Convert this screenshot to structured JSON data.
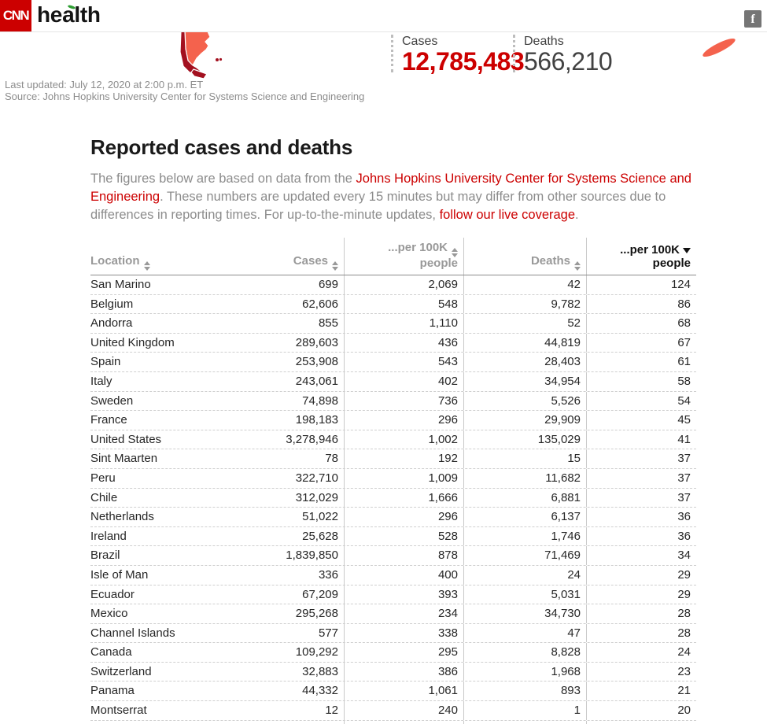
{
  "brand": {
    "logo_text": "CNN",
    "wordmark": "health"
  },
  "topbar": {
    "facebook_label": "f"
  },
  "summary": {
    "cases_label": "Cases",
    "cases_value": "12,785,483",
    "deaths_label": "Deaths",
    "deaths_value": "566,210"
  },
  "meta": {
    "last_updated": "Last updated: July 12, 2020 at 2:00 p.m. ET",
    "source": "Source: Johns Hopkins University Center for Systems Science and Engineering"
  },
  "article": {
    "title": "Reported cases and deaths",
    "intro": {
      "part1": "The figures below are based on data from the ",
      "link1": "Johns Hopkins University Center for Systems Science and Engineering",
      "part2": ". These numbers are updated every 15 minutes but may differ from other sources due to differences in reporting times. For up-to-the-minute updates, ",
      "link2": "follow our live coverage",
      "part3": "."
    }
  },
  "colors": {
    "accent_red": "#cc0000",
    "map_coral": "#f4624d",
    "map_dark_red": "#a3101f",
    "link_red": "#cc0000"
  },
  "table": {
    "columns": [
      {
        "id": "location",
        "line1": "Location",
        "line2": "",
        "align": "left",
        "sort": "inactive"
      },
      {
        "id": "cases",
        "line1": "Cases",
        "line2": "",
        "align": "right",
        "sort": "inactive"
      },
      {
        "id": "cases_per_100k",
        "line1": "...per 100K",
        "line2": "people",
        "align": "right",
        "sort": "inactive"
      },
      {
        "id": "deaths",
        "line1": "Deaths",
        "line2": "",
        "align": "right",
        "sort": "inactive"
      },
      {
        "id": "deaths_per_100k",
        "line1": "...per 100K",
        "line2": "people",
        "align": "right",
        "sort": "desc"
      }
    ],
    "rows": [
      [
        "San Marino",
        "699",
        "2,069",
        "42",
        "124"
      ],
      [
        "Belgium",
        "62,606",
        "548",
        "9,782",
        "86"
      ],
      [
        "Andorra",
        "855",
        "1,110",
        "52",
        "68"
      ],
      [
        "United Kingdom",
        "289,603",
        "436",
        "44,819",
        "67"
      ],
      [
        "Spain",
        "253,908",
        "543",
        "28,403",
        "61"
      ],
      [
        "Italy",
        "243,061",
        "402",
        "34,954",
        "58"
      ],
      [
        "Sweden",
        "74,898",
        "736",
        "5,526",
        "54"
      ],
      [
        "France",
        "198,183",
        "296",
        "29,909",
        "45"
      ],
      [
        "United States",
        "3,278,946",
        "1,002",
        "135,029",
        "41"
      ],
      [
        "Sint Maarten",
        "78",
        "192",
        "15",
        "37"
      ],
      [
        "Peru",
        "322,710",
        "1,009",
        "11,682",
        "37"
      ],
      [
        "Chile",
        "312,029",
        "1,666",
        "6,881",
        "37"
      ],
      [
        "Netherlands",
        "51,022",
        "296",
        "6,137",
        "36"
      ],
      [
        "Ireland",
        "25,628",
        "528",
        "1,746",
        "36"
      ],
      [
        "Brazil",
        "1,839,850",
        "878",
        "71,469",
        "34"
      ],
      [
        "Isle of Man",
        "336",
        "400",
        "24",
        "29"
      ],
      [
        "Ecuador",
        "67,209",
        "393",
        "5,031",
        "29"
      ],
      [
        "Mexico",
        "295,268",
        "234",
        "34,730",
        "28"
      ],
      [
        "Channel Islands",
        "577",
        "338",
        "47",
        "28"
      ],
      [
        "Canada",
        "109,292",
        "295",
        "8,828",
        "24"
      ],
      [
        "Switzerland",
        "32,883",
        "386",
        "1,968",
        "23"
      ],
      [
        "Panama",
        "44,332",
        "1,061",
        "893",
        "21"
      ],
      [
        "Montserrat",
        "12",
        "240",
        "1",
        "20"
      ],
      [
        "",
        "",
        "",
        "",
        ""
      ]
    ]
  }
}
